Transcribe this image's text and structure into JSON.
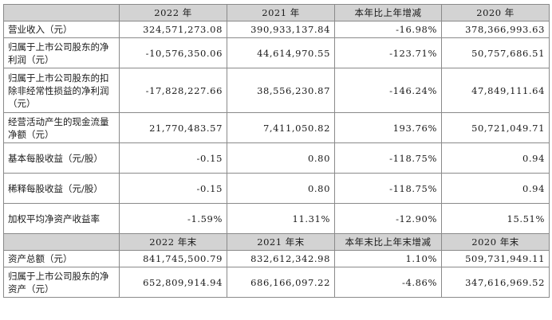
{
  "headers_top": [
    "",
    "2022 年",
    "2021 年",
    "本年比上年增减",
    "2020 年"
  ],
  "rows_top": [
    {
      "label": "营业收入（元）",
      "v1": "324,571,273.08",
      "v2": "390,933,137.84",
      "v3": "-16.98%",
      "v4": "378,366,993.63"
    },
    {
      "label": "归属于上市公司股东的净利润（元）",
      "v1": "-10,576,350.06",
      "v2": "44,614,970.55",
      "v3": "-123.71%",
      "v4": "50,757,686.51"
    },
    {
      "label": "归属于上市公司股东的扣除非经常性损益的净利润（元）",
      "v1": "-17,828,227.66",
      "v2": "38,556,230.87",
      "v3": "-146.24%",
      "v4": "47,849,111.64"
    },
    {
      "label": "经营活动产生的现金流量净额（元）",
      "v1": "21,770,483.57",
      "v2": "7,411,050.82",
      "v3": "193.76%",
      "v4": "50,721,049.71"
    },
    {
      "label": "基本每股收益（元/股）",
      "v1": "-0.15",
      "v2": "0.80",
      "v3": "-118.75%",
      "v4": "0.94"
    },
    {
      "label": "稀释每股收益（元/股）",
      "v1": "-0.15",
      "v2": "0.80",
      "v3": "-118.75%",
      "v4": "0.94"
    },
    {
      "label": "加权平均净资产收益率",
      "v1": "-1.59%",
      "v2": "11.31%",
      "v3": "-12.90%",
      "v4": "15.51%"
    }
  ],
  "headers_bottom": [
    "",
    "2022 年末",
    "2021 年末",
    "本年末比上年末增减",
    "2020 年末"
  ],
  "rows_bottom": [
    {
      "label": "资产总额（元）",
      "v1": "841,745,500.79",
      "v2": "832,612,342.98",
      "v3": "1.10%",
      "v4": "509,731,949.11"
    },
    {
      "label": "归属于上市公司股东的净资产（元）",
      "v1": "652,809,914.94",
      "v2": "686,166,097.22",
      "v3": "-4.86%",
      "v4": "347,616,969.52"
    }
  ]
}
